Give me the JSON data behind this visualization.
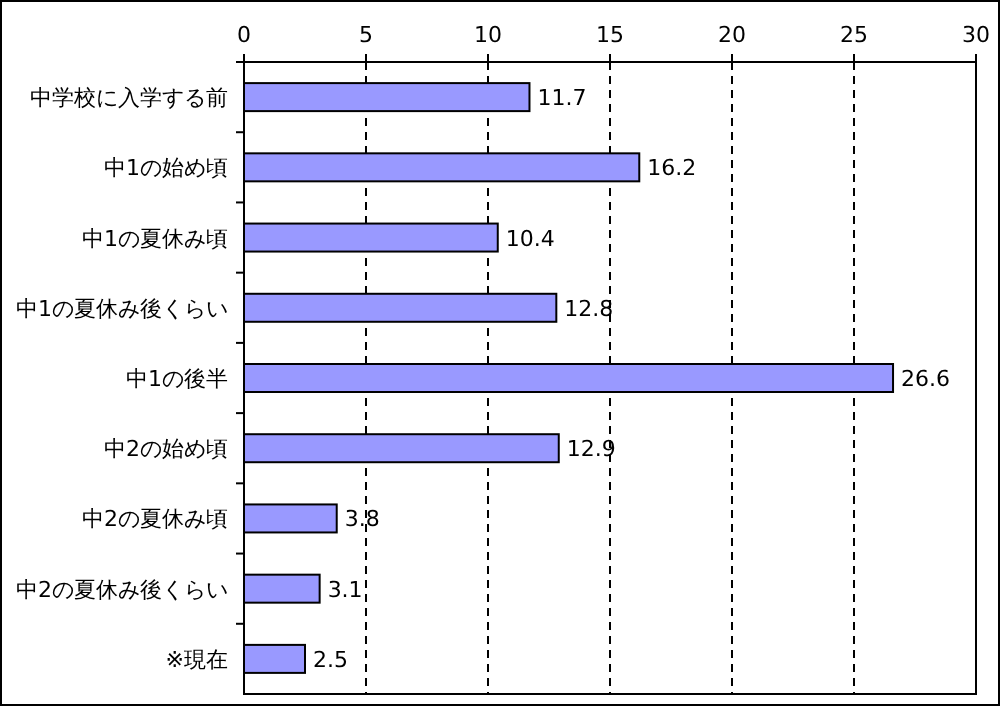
{
  "chart_data": {
    "type": "bar",
    "orientation": "horizontal",
    "categories": [
      "中学校に入学する前",
      "中1の始め頃",
      "中1の夏休み頃",
      "中1の夏休み後くらい",
      "中1の後半",
      "中2の始め頃",
      "中2の夏休み頃",
      "中2の夏休み後くらい",
      "※現在"
    ],
    "values": [
      11.7,
      16.2,
      10.4,
      12.8,
      26.6,
      12.9,
      3.8,
      3.1,
      2.5
    ],
    "color": "#9999ff",
    "xlim": [
      0,
      30
    ],
    "xticks": [
      0,
      5,
      10,
      15,
      20,
      25,
      30
    ],
    "grid": "x",
    "data_labels": true
  }
}
